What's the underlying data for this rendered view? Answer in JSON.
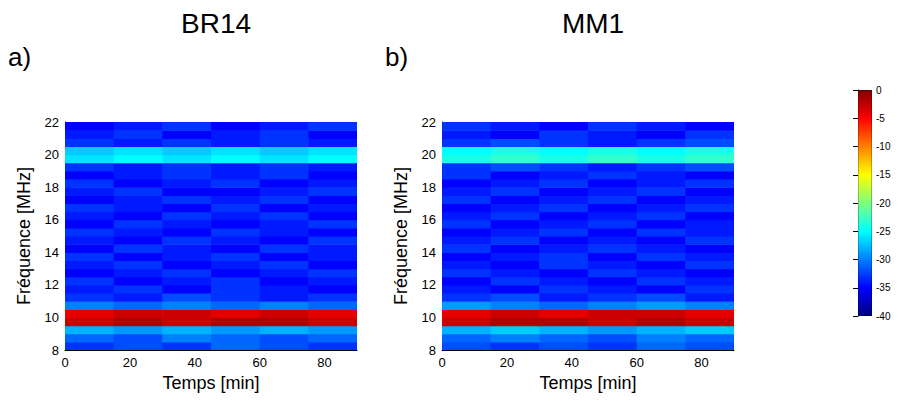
{
  "chart_data": [
    {
      "type": "heatmap",
      "title": "BR14",
      "annotations": [
        "a)"
      ],
      "x_label": "Temps [min]",
      "y_label": "Fréquence [MHz]",
      "xlim": [
        0,
        90
      ],
      "xticks": [
        0,
        20,
        40,
        60,
        80
      ],
      "ylim": [
        8,
        22
      ],
      "yticks": [
        8,
        10,
        12,
        14,
        16,
        18,
        20,
        22
      ],
      "grid": false,
      "x": [
        7.5,
        22.5,
        37.5,
        52.5,
        67.5,
        82.5
      ],
      "y": [
        8.25,
        8.75,
        9.25,
        9.75,
        10.25,
        10.75,
        11.25,
        11.75,
        12.25,
        12.75,
        13.25,
        13.75,
        14.25,
        14.75,
        15.25,
        15.75,
        16.25,
        16.75,
        17.25,
        17.75,
        18.25,
        18.75,
        19.25,
        19.75,
        20.25,
        20.75,
        21.25,
        21.75
      ],
      "values": [
        [
          -33,
          -32,
          -33,
          -31,
          -32,
          -33
        ],
        [
          -31,
          -32,
          -30,
          -31,
          -32,
          -31
        ],
        [
          -28,
          -29,
          -28,
          -29,
          -28,
          -29
        ],
        [
          -3,
          -2,
          -3,
          -2,
          -2,
          -3
        ],
        [
          -4,
          -3,
          -3,
          -4,
          -3,
          -4
        ],
        [
          -30,
          -31,
          -30,
          -31,
          -30,
          -31
        ],
        [
          -33,
          -34,
          -32,
          -33,
          -34,
          -33
        ],
        [
          -34,
          -33,
          -35,
          -33,
          -34,
          -35
        ],
        [
          -33,
          -35,
          -34,
          -33,
          -35,
          -34
        ],
        [
          -35,
          -34,
          -33,
          -35,
          -34,
          -33
        ],
        [
          -34,
          -33,
          -35,
          -34,
          -33,
          -35
        ],
        [
          -33,
          -35,
          -34,
          -33,
          -35,
          -34
        ],
        [
          -35,
          -33,
          -34,
          -35,
          -33,
          -34
        ],
        [
          -34,
          -35,
          -33,
          -34,
          -35,
          -33
        ],
        [
          -33,
          -34,
          -35,
          -33,
          -34,
          -35
        ],
        [
          -35,
          -33,
          -34,
          -35,
          -34,
          -33
        ],
        [
          -34,
          -35,
          -33,
          -34,
          -33,
          -35
        ],
        [
          -33,
          -34,
          -35,
          -33,
          -35,
          -34
        ],
        [
          -35,
          -34,
          -33,
          -34,
          -33,
          -35
        ],
        [
          -34,
          -33,
          -35,
          -35,
          -34,
          -33
        ],
        [
          -33,
          -35,
          -34,
          -33,
          -35,
          -34
        ],
        [
          -35,
          -34,
          -33,
          -34,
          -33,
          -35
        ],
        [
          -33,
          -34,
          -33,
          -34,
          -33,
          -34
        ],
        [
          -26,
          -25,
          -26,
          -25,
          -26,
          -25
        ],
        [
          -27,
          -26,
          -27,
          -26,
          -27,
          -26
        ],
        [
          -33,
          -34,
          -33,
          -34,
          -33,
          -34
        ],
        [
          -34,
          -33,
          -35,
          -34,
          -33,
          -35
        ],
        [
          -35,
          -34,
          -33,
          -35,
          -34,
          -33
        ]
      ],
      "colorbar_range": [
        -40,
        0
      ],
      "colorbar_ticks": [
        -40,
        -35,
        -30,
        -25,
        -20,
        -15,
        -10,
        -5,
        0
      ]
    },
    {
      "type": "heatmap",
      "title": "MM1",
      "annotations": [
        "b)"
      ],
      "x_label": "Temps [min]",
      "y_label": "Fréquence [MHz]",
      "xlim": [
        0,
        90
      ],
      "xticks": [
        0,
        20,
        40,
        60,
        80
      ],
      "ylim": [
        8,
        22
      ],
      "yticks": [
        8,
        10,
        12,
        14,
        16,
        18,
        20,
        22
      ],
      "grid": false,
      "x": [
        7.5,
        22.5,
        37.5,
        52.5,
        67.5,
        82.5
      ],
      "y": [
        8.25,
        8.75,
        9.25,
        9.75,
        10.25,
        10.75,
        11.25,
        11.75,
        12.25,
        12.75,
        13.25,
        13.75,
        14.25,
        14.75,
        15.25,
        15.75,
        16.25,
        16.75,
        17.25,
        17.75,
        18.25,
        18.75,
        19.25,
        19.75,
        20.25,
        20.75,
        21.25,
        21.75
      ],
      "values": [
        [
          -32,
          -33,
          -32,
          -33,
          -31,
          -32
        ],
        [
          -31,
          -30,
          -31,
          -32,
          -30,
          -31
        ],
        [
          -28,
          -27,
          -28,
          -29,
          -28,
          -27
        ],
        [
          -3,
          -2,
          -2,
          -3,
          -2,
          -3
        ],
        [
          -4,
          -3,
          -4,
          -3,
          -3,
          -4
        ],
        [
          -29,
          -30,
          -31,
          -30,
          -29,
          -30
        ],
        [
          -33,
          -32,
          -34,
          -33,
          -32,
          -34
        ],
        [
          -34,
          -35,
          -33,
          -34,
          -35,
          -33
        ],
        [
          -35,
          -33,
          -34,
          -35,
          -33,
          -34
        ],
        [
          -33,
          -34,
          -35,
          -33,
          -34,
          -35
        ],
        [
          -34,
          -35,
          -33,
          -34,
          -35,
          -33
        ],
        [
          -35,
          -34,
          -33,
          -35,
          -33,
          -34
        ],
        [
          -33,
          -35,
          -34,
          -33,
          -34,
          -35
        ],
        [
          -34,
          -33,
          -35,
          -34,
          -35,
          -33
        ],
        [
          -35,
          -34,
          -33,
          -35,
          -33,
          -34
        ],
        [
          -33,
          -35,
          -34,
          -33,
          -35,
          -34
        ],
        [
          -34,
          -33,
          -35,
          -34,
          -33,
          -35
        ],
        [
          -35,
          -34,
          -33,
          -35,
          -34,
          -33
        ],
        [
          -33,
          -35,
          -34,
          -33,
          -35,
          -34
        ],
        [
          -34,
          -33,
          -35,
          -34,
          -33,
          -35
        ],
        [
          -35,
          -34,
          -33,
          -35,
          -34,
          -33
        ],
        [
          -33,
          -35,
          -34,
          -33,
          -34,
          -35
        ],
        [
          -33,
          -32,
          -33,
          -34,
          -33,
          -32
        ],
        [
          -24,
          -23,
          -24,
          -23,
          -24,
          -23
        ],
        [
          -25,
          -24,
          -25,
          -24,
          -25,
          -24
        ],
        [
          -33,
          -32,
          -33,
          -34,
          -33,
          -32
        ],
        [
          -34,
          -35,
          -33,
          -34,
          -35,
          -33
        ],
        [
          -33,
          -34,
          -35,
          -33,
          -34,
          -35
        ]
      ],
      "colorbar_range": [
        -40,
        0
      ],
      "colorbar_ticks": [
        -40,
        -35,
        -30,
        -25,
        -20,
        -15,
        -10,
        -5,
        0
      ]
    }
  ]
}
